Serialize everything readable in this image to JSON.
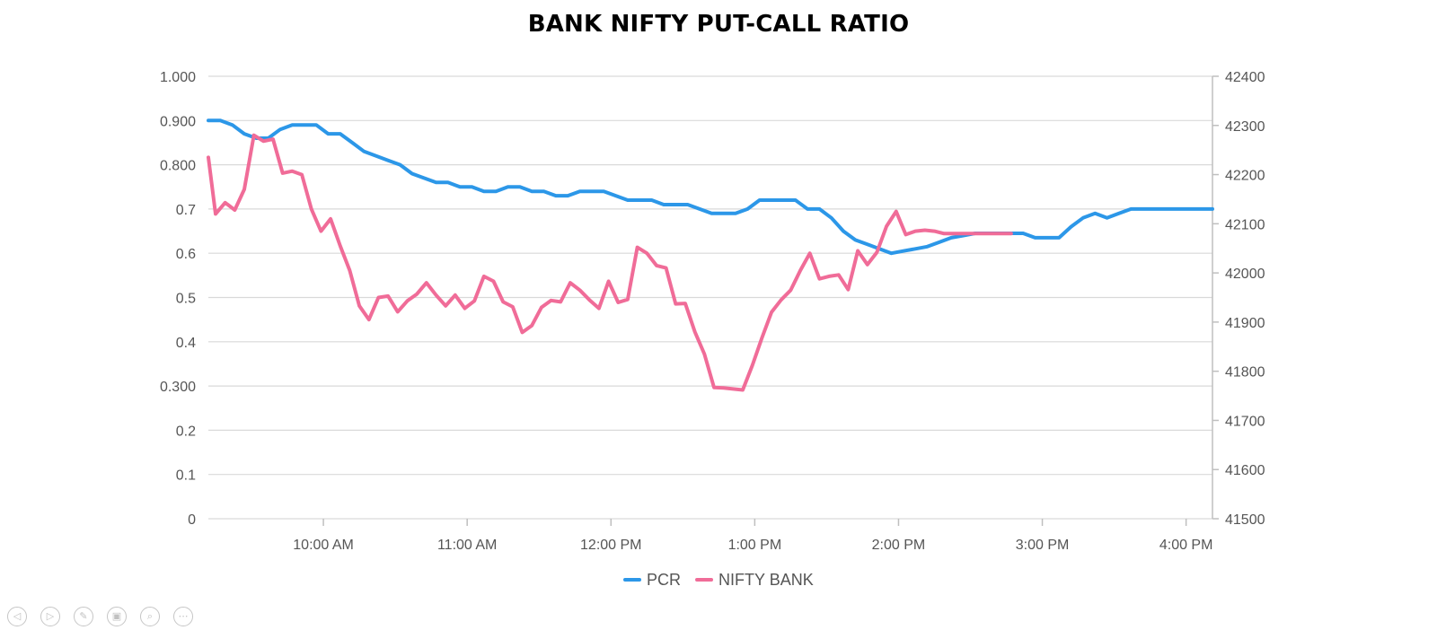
{
  "chart_data": {
    "type": "line",
    "title": "BANK NIFTY PUT-CALL RATIO",
    "x_tick_labels": [
      "10:00 AM",
      "11:00 AM",
      "12:00 PM",
      "1:00 PM",
      "2:00 PM",
      "3:00 PM",
      "4:00 PM"
    ],
    "x_tick_minutes": [
      600,
      660,
      720,
      780,
      840,
      900,
      960
    ],
    "xlim_minutes": [
      552,
      971
    ],
    "y_left": {
      "min": 0,
      "max": 1.0,
      "tick_values": [
        0,
        0.1,
        0.2,
        0.3,
        0.4,
        0.5,
        0.6,
        0.7,
        0.8,
        0.9,
        1.0
      ],
      "tick_labels": [
        "0",
        "0.1",
        "0.2",
        "0.300",
        "0.4",
        "0.5",
        "0.6",
        "0.7",
        "0.800",
        "0.900",
        "1.000"
      ]
    },
    "y_right": {
      "min": 41500,
      "max": 42400,
      "tick_values": [
        41500,
        41600,
        41700,
        41800,
        41900,
        42000,
        42100,
        42200,
        42300,
        42400
      ],
      "tick_labels": [
        "41500",
        "41600",
        "41700",
        "41800",
        "41900",
        "42000",
        "42100",
        "42200",
        "42300",
        "42400"
      ]
    },
    "grid": true,
    "legend_position": "bottom-center",
    "series": [
      {
        "name": "PCR",
        "axis": "left",
        "color": "#2c97e8",
        "points": [
          [
            552,
            0.9
          ],
          [
            557,
            0.9
          ],
          [
            562,
            0.89
          ],
          [
            567,
            0.87
          ],
          [
            572,
            0.86
          ],
          [
            577,
            0.86
          ],
          [
            582,
            0.88
          ],
          [
            587,
            0.89
          ],
          [
            592,
            0.89
          ],
          [
            597,
            0.89
          ],
          [
            602,
            0.87
          ],
          [
            607,
            0.87
          ],
          [
            612,
            0.85
          ],
          [
            617,
            0.83
          ],
          [
            622,
            0.82
          ],
          [
            627,
            0.81
          ],
          [
            632,
            0.8
          ],
          [
            637,
            0.78
          ],
          [
            642,
            0.77
          ],
          [
            647,
            0.76
          ],
          [
            652,
            0.76
          ],
          [
            657,
            0.75
          ],
          [
            662,
            0.75
          ],
          [
            667,
            0.74
          ],
          [
            672,
            0.74
          ],
          [
            677,
            0.75
          ],
          [
            682,
            0.75
          ],
          [
            687,
            0.74
          ],
          [
            692,
            0.74
          ],
          [
            697,
            0.73
          ],
          [
            702,
            0.73
          ],
          [
            707,
            0.74
          ],
          [
            712,
            0.74
          ],
          [
            717,
            0.74
          ],
          [
            722,
            0.73
          ],
          [
            727,
            0.72
          ],
          [
            732,
            0.72
          ],
          [
            737,
            0.72
          ],
          [
            742,
            0.71
          ],
          [
            747,
            0.71
          ],
          [
            752,
            0.71
          ],
          [
            757,
            0.7
          ],
          [
            762,
            0.69
          ],
          [
            767,
            0.69
          ],
          [
            772,
            0.69
          ],
          [
            777,
            0.7
          ],
          [
            782,
            0.72
          ],
          [
            787,
            0.72
          ],
          [
            792,
            0.72
          ],
          [
            797,
            0.72
          ],
          [
            802,
            0.7
          ],
          [
            807,
            0.7
          ],
          [
            812,
            0.68
          ],
          [
            817,
            0.65
          ],
          [
            822,
            0.63
          ],
          [
            827,
            0.62
          ],
          [
            832,
            0.61
          ],
          [
            837,
            0.6
          ],
          [
            842,
            0.605
          ],
          [
            847,
            0.61
          ],
          [
            852,
            0.615
          ],
          [
            857,
            0.625
          ],
          [
            862,
            0.635
          ],
          [
            867,
            0.64
          ],
          [
            872,
            0.645
          ],
          [
            877,
            0.645
          ],
          [
            882,
            0.645
          ],
          [
            887,
            0.645
          ],
          [
            892,
            0.645
          ],
          [
            897,
            0.635
          ],
          [
            902,
            0.635
          ],
          [
            907,
            0.635
          ],
          [
            912,
            0.66
          ],
          [
            917,
            0.68
          ],
          [
            922,
            0.69
          ],
          [
            927,
            0.68
          ],
          [
            932,
            0.69
          ],
          [
            937,
            0.7
          ],
          [
            942,
            0.7
          ],
          [
            947,
            0.7
          ],
          [
            952,
            0.7
          ],
          [
            957,
            0.7
          ],
          [
            962,
            0.7
          ],
          [
            967,
            0.7
          ],
          [
            971,
            0.7
          ]
        ]
      },
      {
        "name": "NIFTY BANK",
        "axis": "right",
        "color": "#f06c98",
        "points": [
          [
            552,
            42235
          ],
          [
            555,
            42120
          ],
          [
            559,
            42143
          ],
          [
            563,
            42128
          ],
          [
            567,
            42170
          ],
          [
            571,
            42280
          ],
          [
            575,
            42268
          ],
          [
            579,
            42272
          ],
          [
            583,
            42203
          ],
          [
            587,
            42207
          ],
          [
            591,
            42200
          ],
          [
            595,
            42130
          ],
          [
            599,
            42085
          ],
          [
            603,
            42110
          ],
          [
            607,
            42055
          ],
          [
            611,
            42005
          ],
          [
            615,
            41933
          ],
          [
            619,
            41905
          ],
          [
            623,
            41950
          ],
          [
            627,
            41953
          ],
          [
            631,
            41921
          ],
          [
            635,
            41943
          ],
          [
            639,
            41957
          ],
          [
            643,
            41980
          ],
          [
            647,
            41955
          ],
          [
            651,
            41933
          ],
          [
            655,
            41955
          ],
          [
            659,
            41928
          ],
          [
            663,
            41943
          ],
          [
            667,
            41993
          ],
          [
            671,
            41983
          ],
          [
            675,
            41941
          ],
          [
            679,
            41931
          ],
          [
            683,
            41879
          ],
          [
            687,
            41893
          ],
          [
            691,
            41930
          ],
          [
            695,
            41944
          ],
          [
            699,
            41941
          ],
          [
            703,
            41980
          ],
          [
            707,
            41965
          ],
          [
            711,
            41945
          ],
          [
            715,
            41928
          ],
          [
            719,
            41983
          ],
          [
            723,
            41940
          ],
          [
            727,
            41946
          ],
          [
            731,
            42052
          ],
          [
            735,
            42040
          ],
          [
            739,
            42015
          ],
          [
            743,
            42010
          ],
          [
            747,
            41937
          ],
          [
            751,
            41938
          ],
          [
            755,
            41880
          ],
          [
            759,
            41835
          ],
          [
            763,
            41767
          ],
          [
            767,
            41766
          ],
          [
            771,
            41764
          ],
          [
            775,
            41762
          ],
          [
            779,
            41812
          ],
          [
            783,
            41868
          ],
          [
            787,
            41920
          ],
          [
            791,
            41945
          ],
          [
            795,
            41965
          ],
          [
            799,
            42005
          ],
          [
            803,
            42040
          ],
          [
            807,
            41988
          ],
          [
            811,
            41993
          ],
          [
            815,
            41996
          ],
          [
            819,
            41966
          ],
          [
            823,
            42045
          ],
          [
            827,
            42017
          ],
          [
            831,
            42042
          ],
          [
            835,
            42095
          ],
          [
            839,
            42125
          ],
          [
            843,
            42078
          ],
          [
            847,
            42085
          ],
          [
            851,
            42087
          ],
          [
            855,
            42085
          ],
          [
            859,
            42080
          ],
          [
            863,
            42080
          ],
          [
            867,
            42080
          ],
          [
            871,
            42080
          ],
          [
            875,
            42080
          ],
          [
            879,
            42080
          ],
          [
            883,
            42080
          ],
          [
            887,
            42080
          ]
        ]
      }
    ]
  },
  "toolbar": {
    "prev_glyph": "◁",
    "next_glyph": "▷",
    "pen_glyph": "✎",
    "slides_glyph": "▣",
    "zoom_glyph": "⌕",
    "more_glyph": "⋯"
  }
}
